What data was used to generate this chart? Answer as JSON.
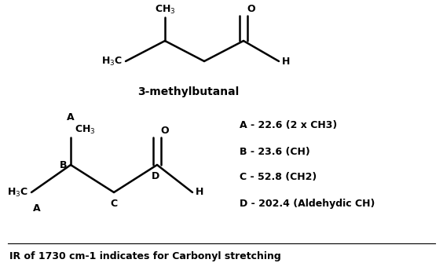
{
  "background_color": "#ffffff",
  "title_molecule": "3-methylbutanal",
  "ir_text": "IR of 1730 cm-1 indicates for Carbonyl stretching",
  "assignments": [
    "A - 22.6 (2 x CH3)",
    "B - 23.6 (CH)",
    "C - 52.8 (CH2)",
    "D - 202.4 (Aldehydic CH)"
  ]
}
